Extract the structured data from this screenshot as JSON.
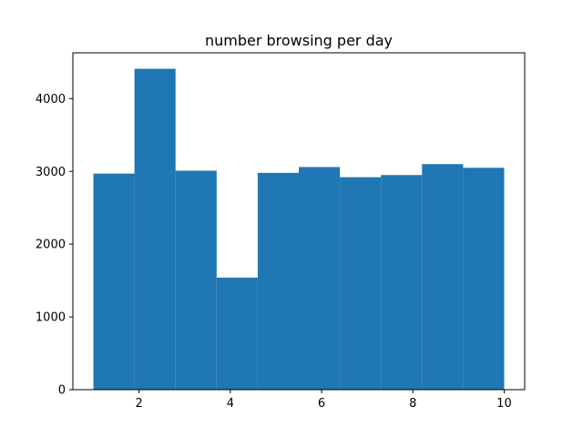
{
  "chart_data": {
    "type": "bar",
    "title": "number browsing per day",
    "xlabel": "",
    "ylabel": "",
    "bin_edges": [
      1.0,
      1.9,
      2.8,
      3.7,
      4.6,
      5.5,
      6.4,
      7.3,
      8.2,
      9.1,
      10.0
    ],
    "values": [
      2970,
      4410,
      3010,
      1540,
      2980,
      3060,
      2920,
      2950,
      3100,
      3050
    ],
    "xlim": [
      0.55,
      10.45
    ],
    "ylim": [
      0,
      4630
    ],
    "xticks": [
      2,
      4,
      6,
      8,
      10
    ],
    "yticks": [
      0,
      1000,
      2000,
      3000,
      4000
    ],
    "bar_color": "#1f77b4",
    "grid": false,
    "legend": "none"
  }
}
